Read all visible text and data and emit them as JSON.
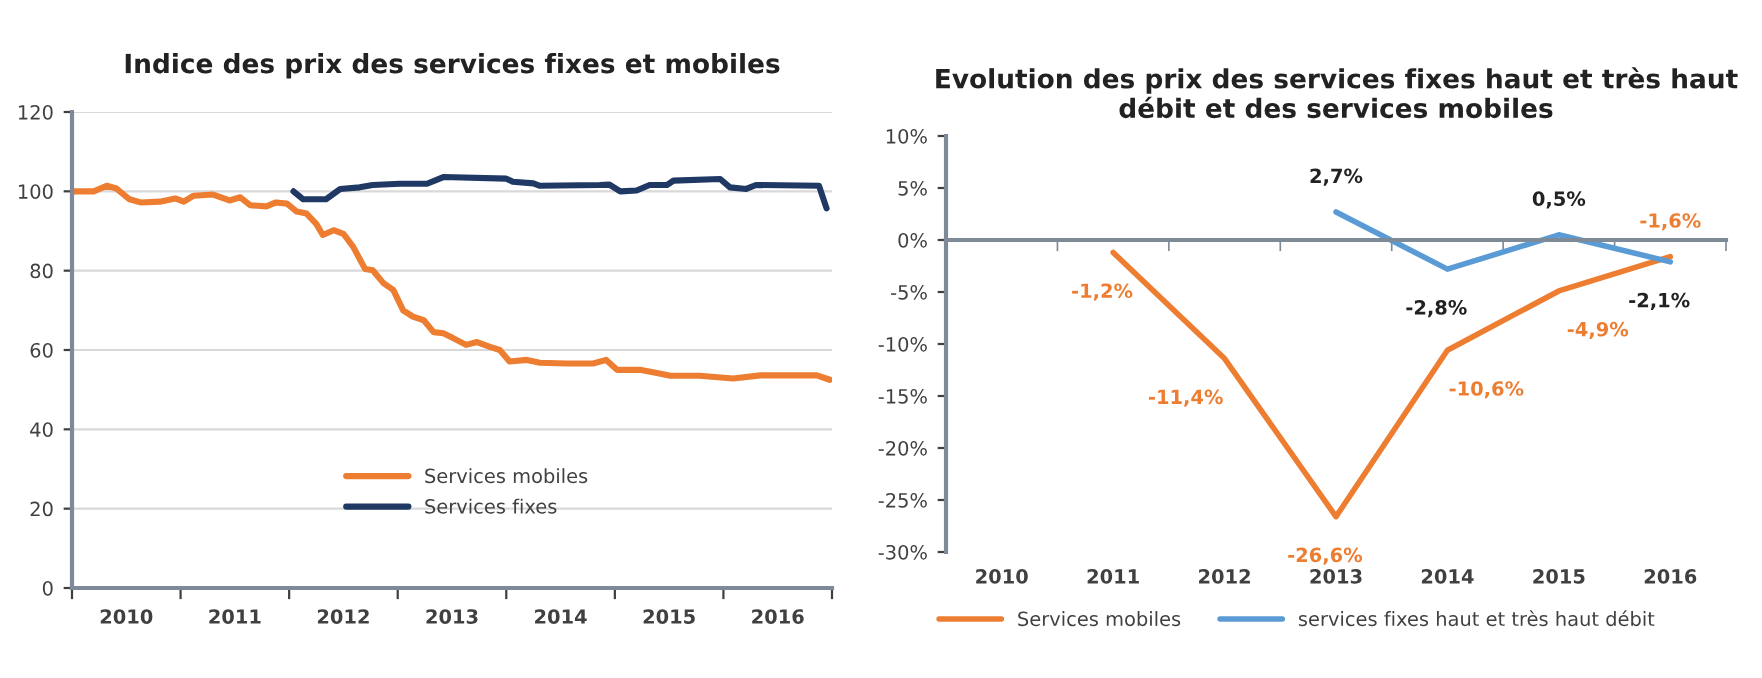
{
  "chart_data": [
    {
      "type": "line",
      "title": "Indice des prix des services fixes et mobiles",
      "xlim": [
        2010,
        2017
      ],
      "ylim": [
        0,
        120
      ],
      "yticks": [
        0,
        20,
        40,
        60,
        80,
        100,
        120
      ],
      "xticks": [
        {
          "value": 2010,
          "label": null
        },
        {
          "value": 2010.5,
          "label": "2010"
        },
        {
          "value": 2011,
          "label": null
        },
        {
          "value": 2011.5,
          "label": "2011"
        },
        {
          "value": 2012,
          "label": null
        },
        {
          "value": 2012.5,
          "label": "2012"
        },
        {
          "value": 2013,
          "label": null
        },
        {
          "value": 2013.5,
          "label": "2013"
        },
        {
          "value": 2014,
          "label": null
        },
        {
          "value": 2014.5,
          "label": "2014"
        },
        {
          "value": 2015,
          "label": null
        },
        {
          "value": 2015.5,
          "label": "2015"
        },
        {
          "value": 2016,
          "label": null
        },
        {
          "value": 2016.5,
          "label": "2016"
        },
        {
          "value": 2017,
          "label": null
        }
      ],
      "grid": "y",
      "legend": "bottom",
      "marker": "none",
      "line_style": "solid",
      "series": [
        {
          "name": "Services mobiles",
          "color": "#ed7d31",
          "x": [
            2010.0,
            2010.2,
            2010.32,
            2010.41,
            2010.53,
            2010.63,
            2010.81,
            2010.95,
            2011.03,
            2011.12,
            2011.3,
            2011.45,
            2011.55,
            2011.64,
            2011.79,
            2011.88,
            2011.98,
            2012.07,
            2012.16,
            2012.25,
            2012.31,
            2012.41,
            2012.5,
            2012.59,
            2012.7,
            2012.77,
            2012.87,
            2012.96,
            2013.05,
            2013.14,
            2013.24,
            2013.33,
            2013.42,
            2013.51,
            2013.63,
            2013.73,
            2013.85,
            2013.94,
            2014.03,
            2014.19,
            2014.31,
            2014.55,
            2014.8,
            2014.92,
            2015.02,
            2015.23,
            2015.41,
            2015.51,
            2015.78,
            2016.09,
            2016.34,
            2016.86,
            2016.98
          ],
          "values": [
            100,
            100,
            101.4,
            100.7,
            98,
            97.2,
            97.4,
            98.2,
            97.4,
            98.9,
            99.2,
            97.7,
            98.5,
            96.5,
            96.2,
            97.2,
            96.9,
            94.9,
            94.4,
            91.8,
            89,
            90.2,
            89.3,
            86,
            80.4,
            80.1,
            76.8,
            75.1,
            70,
            68.4,
            67.5,
            64.5,
            64.2,
            63,
            61.3,
            62,
            60.8,
            60,
            57.1,
            57.5,
            56.8,
            56.6,
            56.6,
            57.5,
            55,
            55,
            54.1,
            53.5,
            53.5,
            52.8,
            53.6,
            53.6,
            52.5
          ]
        },
        {
          "name": "Services fixes",
          "color": "#1f3864",
          "x": [
            2012.04,
            2012.13,
            2012.34,
            2012.47,
            2012.65,
            2012.77,
            2013.02,
            2013.27,
            2013.42,
            2014.0,
            2014.06,
            2014.25,
            2014.31,
            2014.86,
            2014.95,
            2015.05,
            2015.2,
            2015.32,
            2015.48,
            2015.54,
            2015.97,
            2016.06,
            2016.21,
            2016.3,
            2016.88,
            2016.95
          ],
          "values": [
            100,
            98,
            98,
            100.6,
            101,
            101.6,
            101.9,
            101.9,
            103.6,
            103.2,
            102.4,
            102,
            101.4,
            101.6,
            101.7,
            100,
            100.2,
            101.6,
            101.6,
            102.7,
            103.1,
            101,
            100.6,
            101.6,
            101.4,
            95.7
          ]
        }
      ]
    },
    {
      "type": "line",
      "title": "Evolution des prix des services fixes haut et très haut débit et des services mobiles",
      "categories": [
        "2010",
        "2011",
        "2012",
        "2013",
        "2014",
        "2015",
        "2016"
      ],
      "ylim": [
        -30,
        10
      ],
      "yticks": [
        {
          "value": -30,
          "label": "-30%"
        },
        {
          "value": -25,
          "label": "-25%"
        },
        {
          "value": -20,
          "label": "-20%"
        },
        {
          "value": -15,
          "label": "-15%"
        },
        {
          "value": -10,
          "label": "-10%"
        },
        {
          "value": -5,
          "label": "-5%"
        },
        {
          "value": 0,
          "label": "0%"
        },
        {
          "value": 5,
          "label": "5%"
        },
        {
          "value": 10,
          "label": "10%"
        }
      ],
      "legend": "bottom",
      "marker": "none",
      "line_style": "solid",
      "series": [
        {
          "name": "Services mobiles",
          "color": "#ed7d31",
          "values": [
            null,
            -1.2,
            -11.4,
            -26.6,
            -10.6,
            -4.9,
            -1.6
          ],
          "value_labels": [
            null,
            "-1,2%",
            "-11,4%",
            "-26,6%",
            "-10,6%",
            "-4,9%",
            "-1,6%"
          ]
        },
        {
          "name": "services fixes haut et très haut débit",
          "color": "#5b9bd5",
          "values": [
            null,
            null,
            null,
            2.7,
            -2.8,
            0.5,
            -2.1
          ],
          "value_labels": [
            null,
            null,
            null,
            "2,7%",
            "-2,8%",
            "0,5%",
            "-2,1%"
          ]
        }
      ]
    }
  ]
}
